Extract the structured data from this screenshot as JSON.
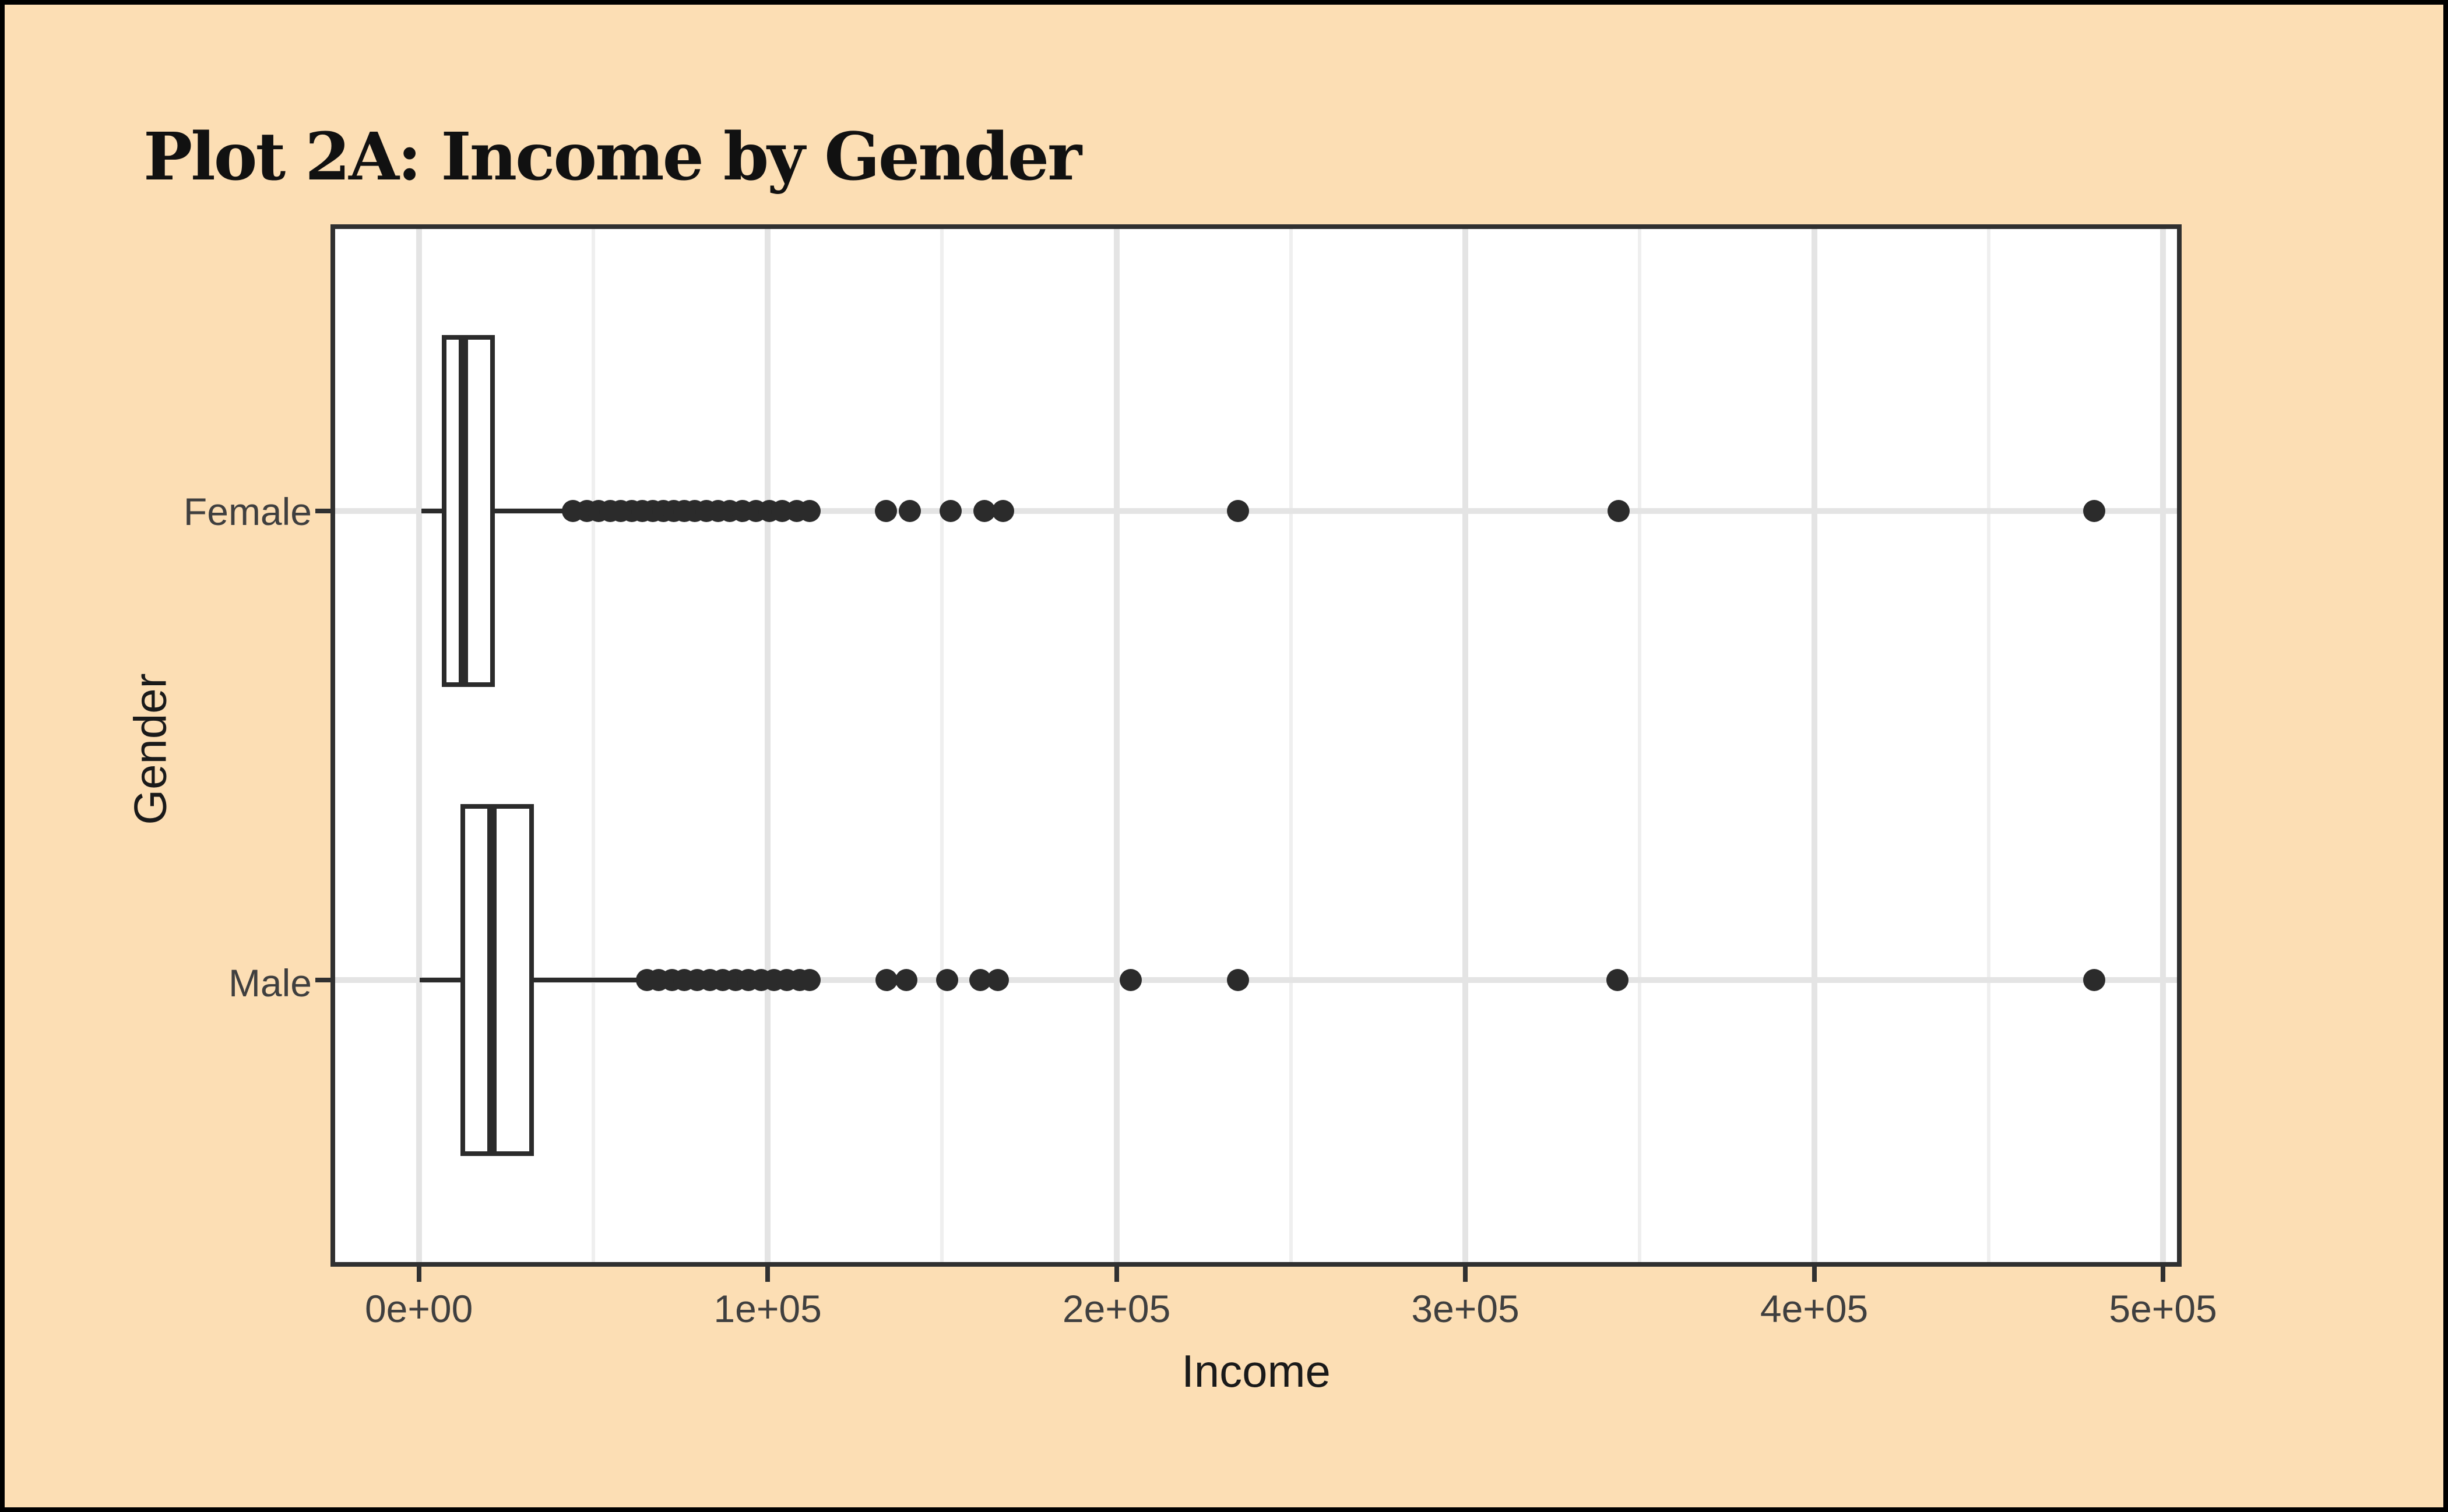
{
  "title": "Plot 2A: Income by Gender",
  "colors": {
    "background": "#fcdeb4",
    "outer_frame": "#000000",
    "panel_background": "#ffffff",
    "panel_border": "#303030",
    "grid_major": "#e4e4e4",
    "grid_minor": "#efefef",
    "ink": "#2b2b2b",
    "axis_text": "#3f3f3f",
    "title_text": "#111111"
  },
  "chart_data": {
    "type": "boxplot",
    "orientation": "horizontal",
    "title": "Plot 2A: Income by Gender",
    "xlabel": "Income",
    "ylabel": "Gender",
    "grid": "major-and-minor-vertical, major-horizontal",
    "legend": "none",
    "xlim": [
      -24000,
      504000
    ],
    "x_tick_labels": [
      "0e+00",
      "1e+05",
      "2e+05",
      "3e+05",
      "4e+05",
      "5e+05"
    ],
    "x_tick_values": [
      0,
      100000,
      200000,
      300000,
      400000,
      500000
    ],
    "x_minor_tick_values": [
      50000,
      150000,
      250000,
      350000,
      450000
    ],
    "categories": [
      "Female",
      "Male"
    ],
    "series": [
      {
        "name": "Female",
        "stats": {
          "whisker_low": 700,
          "q1": 6500,
          "median": 12800,
          "q3": 21800,
          "whisker_high": 42000
        },
        "outliers": [
          44200,
          48200,
          51600,
          54900,
          57900,
          61100,
          64100,
          67100,
          70100,
          73100,
          76100,
          79100,
          82500,
          85800,
          89100,
          92800,
          96700,
          100500,
          104200,
          108300,
          112000,
          133900,
          140700,
          152400,
          162100,
          167400,
          234900,
          343900,
          480300
        ]
      },
      {
        "name": "Male",
        "stats": {
          "whisker_low": 200,
          "q1": 11900,
          "median": 21000,
          "q3": 32900,
          "whisker_high": 62400
        },
        "outliers": [
          65400,
          68800,
          72500,
          76100,
          79800,
          83500,
          87100,
          90800,
          94500,
          98200,
          101800,
          105500,
          109200,
          112000,
          134100,
          139700,
          151400,
          160900,
          165900,
          204000,
          234800,
          343600,
          480300
        ]
      }
    ]
  }
}
